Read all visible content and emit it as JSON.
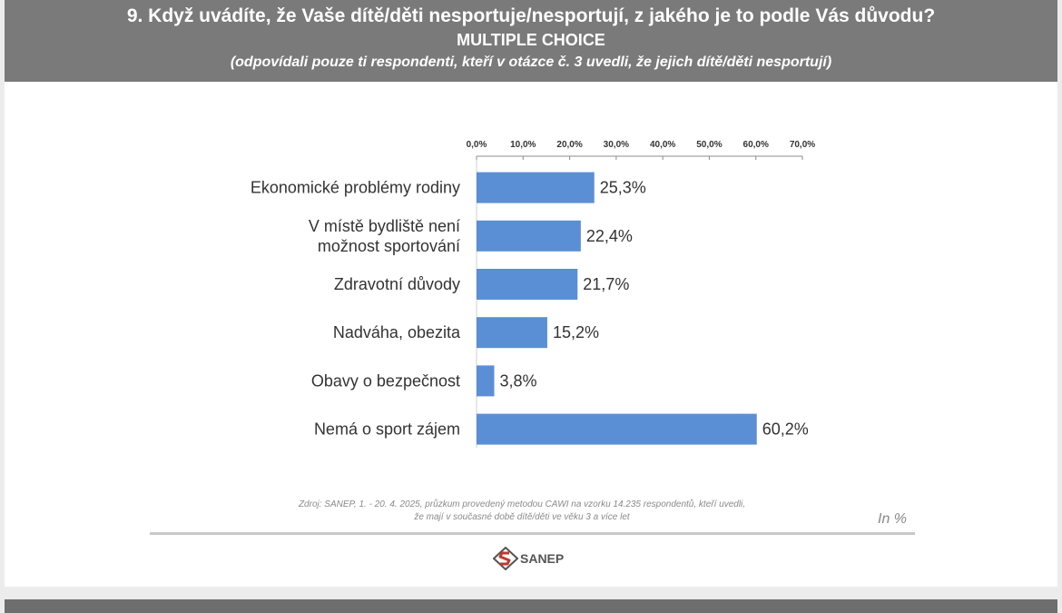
{
  "header": {
    "title": "9. Když uvádíte, že Vaše dítě/děti nesportuje/nesportují, z jakého je to podle Vás důvodu?",
    "subtitle": "MULTIPLE CHOICE",
    "note": "(odpovídali pouze ti respondenti, kteří v otázce č. 3 uvedli, že jejich dítě/děti nesportují)"
  },
  "chart_data": {
    "type": "bar",
    "orientation": "horizontal",
    "categories": [
      "Ekonomické problémy rodiny",
      "V místě bydliště není možnost sportování",
      "Zdravotní důvody",
      "Nadváha, obezita",
      "Obavy o bezpečnost",
      "Nemá o sport zájem"
    ],
    "category_lines": [
      [
        "Ekonomické problémy rodiny"
      ],
      [
        "V místě bydliště není",
        "možnost sportování"
      ],
      [
        "Zdravotní důvody"
      ],
      [
        "Nadváha, obezita"
      ],
      [
        "Obavy o bezpečnost"
      ],
      [
        "Nemá o sport zájem"
      ]
    ],
    "values": [
      25.3,
      22.4,
      21.7,
      15.2,
      3.8,
      60.2
    ],
    "value_labels": [
      "25,3%",
      "22,4%",
      "21,7%",
      "15,2%",
      "3,8%",
      "60,2%"
    ],
    "xlim": [
      0,
      70
    ],
    "xticks": [
      0,
      10,
      20,
      30,
      40,
      50,
      60,
      70
    ],
    "xtick_labels": [
      "0,0%",
      "10,0%",
      "20,0%",
      "30,0%",
      "40,0%",
      "50,0%",
      "60,0%",
      "70,0%"
    ],
    "axis_position": "top",
    "grid": false,
    "bar_color": "#5b8fd5"
  },
  "footer": {
    "source_line1": "Zdroj: SANEP, 1. - 20. 4. 2025, průzkum provedený metodou CAWI na vzorku 14.235 respondentů, kteří uvedli,",
    "source_line2": "že mají v současné době dítě/děti ve věku 3 a více let",
    "unit": "In %",
    "logo_text": "SANEP"
  }
}
